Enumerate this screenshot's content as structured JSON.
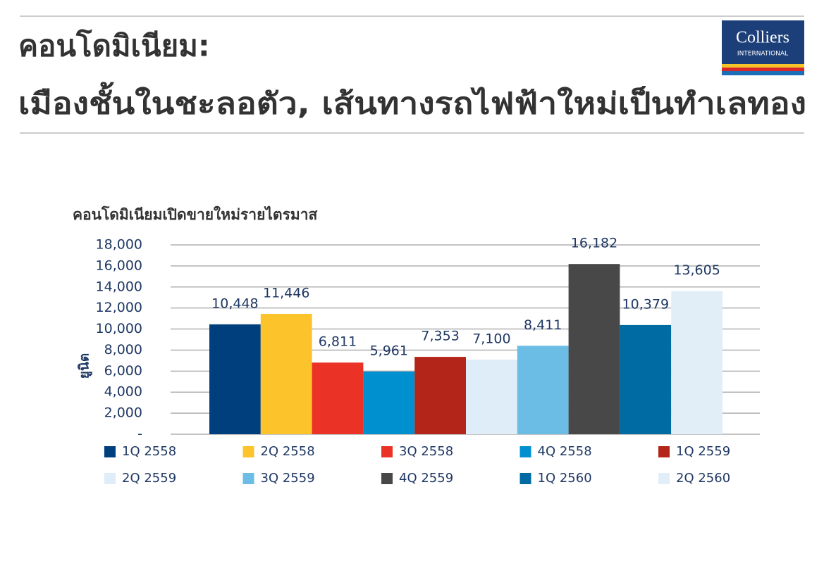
{
  "header": {
    "title_lines": [
      "คอนโดมิเนียม:",
      "เมืองชั้นในชะลอตัว, เส้นทางรถไฟฟ้าใหม่เป็นทำเลทอง"
    ],
    "logo": {
      "name": "Colliers",
      "subtitle": "INTERNATIONAL"
    }
  },
  "chart_data": {
    "type": "bar",
    "title": "คอนโดมิเนียมเปิดขายใหม่รายไตรมาส",
    "y_label": "ยูนิต",
    "series": [
      {
        "name": "1Q 2558",
        "color": "#003f7d",
        "values": [
          10448
        ],
        "value_labels": [
          "10,448"
        ]
      },
      {
        "name": "2Q 2558",
        "color": "#fcc42a",
        "values": [
          11446
        ],
        "value_labels": [
          "11,446"
        ]
      },
      {
        "name": "3Q 2558",
        "color": "#ea3326",
        "values": [
          6811
        ],
        "value_labels": [
          "6,811"
        ]
      },
      {
        "name": "4Q 2558",
        "color": "#0090d0",
        "values": [
          5961
        ],
        "value_labels": [
          "5,961"
        ]
      },
      {
        "name": "1Q 2559",
        "color": "#b32419",
        "values": [
          7353
        ],
        "value_labels": [
          "7,353"
        ]
      },
      {
        "name": "2Q 2559",
        "color": "#deedf8",
        "values": [
          7100
        ],
        "value_labels": [
          "7,100"
        ]
      },
      {
        "name": "3Q 2559",
        "color": "#6bbde6",
        "values": [
          8411
        ],
        "value_labels": [
          "8,411"
        ]
      },
      {
        "name": "4Q 2559",
        "color": "#484848",
        "values": [
          16182
        ],
        "value_labels": [
          "16,182"
        ]
      },
      {
        "name": "1Q 2560",
        "color": "#006ba3",
        "values": [
          10379
        ],
        "value_labels": [
          "10,379"
        ]
      },
      {
        "name": "2Q 2560",
        "color": "#e1eef8",
        "values": [
          13605
        ],
        "value_labels": [
          "13,605"
        ]
      }
    ],
    "ylim": [
      0,
      18000
    ],
    "yticks": [
      {
        "value": 0,
        "label": "-"
      },
      {
        "value": 2000,
        "label": "2,000"
      },
      {
        "value": 4000,
        "label": "4,000"
      },
      {
        "value": 6000,
        "label": "6,000"
      },
      {
        "value": 8000,
        "label": "8,000"
      },
      {
        "value": 10000,
        "label": "10,000"
      },
      {
        "value": 12000,
        "label": "12,000"
      },
      {
        "value": 14000,
        "label": "14,000"
      },
      {
        "value": 16000,
        "label": "16,000"
      },
      {
        "value": 18000,
        "label": "18,000"
      }
    ],
    "grid": true
  }
}
